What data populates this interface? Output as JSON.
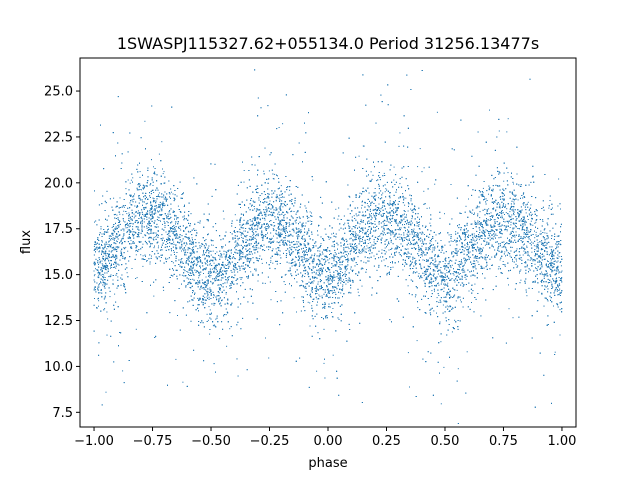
{
  "chart_data": {
    "type": "scatter",
    "title": "1SWASPJ115327.62+055134.0 Period 31256.13477s",
    "xlabel": "phase",
    "ylabel": "flux",
    "xlim": [
      -1.06,
      1.06
    ],
    "ylim": [
      6.7,
      26.8
    ],
    "x_ticks": [
      -1.0,
      -0.75,
      -0.5,
      -0.25,
      0.0,
      0.25,
      0.5,
      0.75,
      1.0
    ],
    "x_tick_labels": [
      "−1.00",
      "−0.75",
      "−0.50",
      "−0.25",
      "0.00",
      "0.25",
      "0.50",
      "0.75",
      "1.00"
    ],
    "y_ticks": [
      7.5,
      10.0,
      12.5,
      15.0,
      17.5,
      20.0,
      22.5,
      25.0
    ],
    "y_tick_labels": [
      "7.5",
      "10.0",
      "12.5",
      "15.0",
      "17.5",
      "20.0",
      "22.5",
      "25.0"
    ],
    "grid": false,
    "point_color": "#1f77b4",
    "series": [
      {
        "x": [
          -1.0,
          -0.95,
          -0.9,
          -0.85,
          -0.8,
          -0.75,
          -0.7,
          -0.65,
          -0.6,
          -0.55,
          -0.5,
          -0.45,
          -0.4,
          -0.35,
          -0.3,
          -0.25,
          -0.2,
          -0.15,
          -0.1,
          -0.05,
          0.0,
          0.05,
          0.1,
          0.15,
          0.2,
          0.25,
          0.3,
          0.35,
          0.4,
          0.45,
          0.5,
          0.55,
          0.6,
          0.65,
          0.7,
          0.75,
          0.8,
          0.85,
          0.9,
          0.95,
          1.0
        ],
        "y": [
          15.2,
          15.9,
          16.8,
          17.6,
          18.1,
          18.2,
          17.9,
          17.2,
          16.2,
          15.1,
          14.6,
          15.0,
          15.9,
          16.9,
          17.6,
          17.9,
          17.7,
          17.1,
          16.2,
          15.1,
          14.6,
          15.3,
          16.4,
          17.4,
          17.9,
          18.1,
          17.8,
          17.2,
          16.2,
          15.2,
          14.7,
          15.1,
          16.0,
          17.0,
          17.6,
          17.9,
          17.8,
          17.2,
          16.4,
          15.6,
          15.2
        ]
      }
    ]
  }
}
